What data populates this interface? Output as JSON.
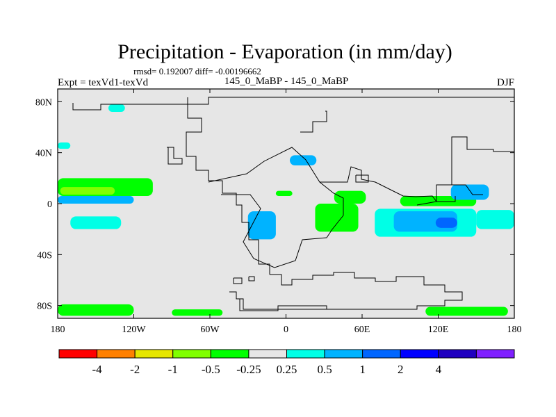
{
  "chart_data": {
    "type": "heatmap",
    "title": "Precipitation - Evaporation (in mm/day)",
    "subtitle": "rmsd= 0.192007 diff= -0.00196662",
    "left_label": "Expt = texVd1-texVd",
    "center_label": "145_0_MaBP - 145_0_MaBP",
    "right_label": "DJF",
    "xlabel": "",
    "ylabel": "",
    "xlim": [
      -180,
      180
    ],
    "ylim": [
      -90,
      90
    ],
    "x_ticks": [
      -180,
      -120,
      -60,
      0,
      60,
      120,
      180
    ],
    "x_tick_labels": [
      "180",
      "120W",
      "60W",
      "0",
      "60E",
      "120E",
      "180"
    ],
    "y_ticks": [
      80,
      40,
      0,
      -40,
      -80
    ],
    "y_tick_labels": [
      "80N",
      "40N",
      "0",
      "40S",
      "80S"
    ],
    "background_color": "#e6e6e6",
    "colorbar": {
      "colors": [
        "#ff0000",
        "#ff8000",
        "#e6e600",
        "#80ff00",
        "#00ff00",
        "#e6e6e6",
        "#00ffe6",
        "#00b3ff",
        "#0066ff",
        "#0000ff",
        "#2000c0",
        "#8020ff"
      ],
      "labels": [
        "-4",
        "-2",
        "-1",
        "-0.5",
        "-0.25",
        "0.25",
        "0.5",
        "1",
        "2",
        "4"
      ]
    },
    "regions": [
      {
        "name": "central-pacific-positive",
        "level": "-0.25",
        "color": "#00ff00",
        "lon": [
          -180,
          -105
        ],
        "lat": [
          6,
          20
        ]
      },
      {
        "name": "central-pacific-band",
        "level": "-0.5",
        "color": "#80ff00",
        "lon": [
          -178,
          -135
        ],
        "lat": [
          7,
          13
        ]
      },
      {
        "name": "equatorial-pacific-blue",
        "level": "0.5",
        "color": "#00b3ff",
        "lon": [
          -180,
          -120
        ],
        "lat": [
          0,
          6
        ]
      },
      {
        "name": "south-pacific-cyan",
        "level": "0.25",
        "color": "#00ffe6",
        "lon": [
          -170,
          -130
        ],
        "lat": [
          -20,
          -10
        ]
      },
      {
        "name": "north-pacific-cyan",
        "level": "0.25",
        "color": "#00ffe6",
        "lon": [
          -180,
          -170
        ],
        "lat": [
          43,
          48
        ]
      },
      {
        "name": "arctic-cyan",
        "level": "0.25",
        "color": "#00ffe6",
        "lon": [
          -140,
          -127
        ],
        "lat": [
          72,
          78
        ]
      },
      {
        "name": "central-asia-cyan",
        "level": "0.5",
        "color": "#00b3ff",
        "lon": [
          3,
          24
        ],
        "lat": [
          30,
          38
        ]
      },
      {
        "name": "central-asia-green",
        "level": "-0.25",
        "color": "#00ff00",
        "lon": [
          -8,
          5
        ],
        "lat": [
          6,
          10
        ]
      },
      {
        "name": "south-america-blue",
        "level": "1",
        "color": "#0066ff",
        "lon": [
          -24,
          -12
        ],
        "lat": [
          -22,
          -11
        ]
      },
      {
        "name": "south-america-cyan",
        "level": "0.5",
        "color": "#00b3ff",
        "lon": [
          -30,
          -8
        ],
        "lat": [
          -28,
          -6
        ]
      },
      {
        "name": "africa-green",
        "level": "-0.25",
        "color": "#00ff00",
        "lon": [
          23,
          57
        ],
        "lat": [
          -22,
          0
        ]
      },
      {
        "name": "africa-east-green",
        "level": "-0.25",
        "color": "#00ff00",
        "lon": [
          38,
          63
        ],
        "lat": [
          0,
          10
        ]
      },
      {
        "name": "indian-ocean-cyan",
        "level": "0.25",
        "color": "#00ffe6",
        "lon": [
          70,
          150
        ],
        "lat": [
          -26,
          -4
        ]
      },
      {
        "name": "indian-ocean-blue",
        "level": "0.5",
        "color": "#00b3ff",
        "lon": [
          85,
          135
        ],
        "lat": [
          -22,
          -6
        ]
      },
      {
        "name": "indian-ocean-dark",
        "level": "1",
        "color": "#0066ff",
        "lon": [
          118,
          135
        ],
        "lat": [
          -19,
          -11
        ]
      },
      {
        "name": "maritime-green",
        "level": "-0.25",
        "color": "#00ff00",
        "lon": [
          90,
          150
        ],
        "lat": [
          -2,
          6
        ]
      },
      {
        "name": "west-pacific-blue",
        "level": "0.5",
        "color": "#00b3ff",
        "lon": [
          130,
          160
        ],
        "lat": [
          3,
          15
        ]
      },
      {
        "name": "south-pacific-east-cyan",
        "level": "0.25",
        "color": "#00ffe6",
        "lon": [
          150,
          180
        ],
        "lat": [
          -20,
          -5
        ]
      },
      {
        "name": "southern-ocean-green",
        "level": "-0.25",
        "color": "#00ff00",
        "lon": [
          -180,
          -120
        ],
        "lat": [
          -88,
          -79
        ]
      },
      {
        "name": "antarctic-green",
        "level": "-0.25",
        "color": "#00ff00",
        "lon": [
          -90,
          -50
        ],
        "lat": [
          -88,
          -83
        ]
      },
      {
        "name": "southern-east-green",
        "level": "-0.25",
        "color": "#00ff00",
        "lon": [
          110,
          175
        ],
        "lat": [
          -88,
          -81
        ]
      }
    ]
  }
}
